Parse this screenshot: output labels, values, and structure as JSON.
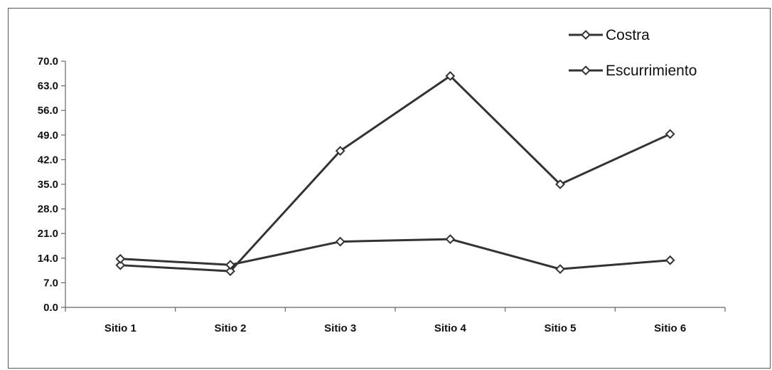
{
  "chart_data": {
    "type": "line",
    "categories": [
      "Sitio 1",
      "Sitio 2",
      "Sitio 3",
      "Sitio 4",
      "Sitio 5",
      "Sitio 6"
    ],
    "series": [
      {
        "name": "Costra",
        "values": [
          12.0,
          10.3,
          44.5,
          65.8,
          35.0,
          49.3
        ]
      },
      {
        "name": "Escurrimiento",
        "values": [
          13.8,
          12.1,
          18.7,
          19.4,
          10.9,
          13.4
        ]
      }
    ],
    "title": "",
    "xlabel": "",
    "ylabel": "",
    "ylim": [
      0,
      70
    ],
    "yticks": [
      "0.0",
      "7.0",
      "14.0",
      "21.0",
      "28.0",
      "35.0",
      "42.0",
      "49.0",
      "56.0",
      "63.0",
      "70.0"
    ],
    "grid": false,
    "legend_position": "top-right",
    "marker": "diamond",
    "line_color": "#333333"
  }
}
